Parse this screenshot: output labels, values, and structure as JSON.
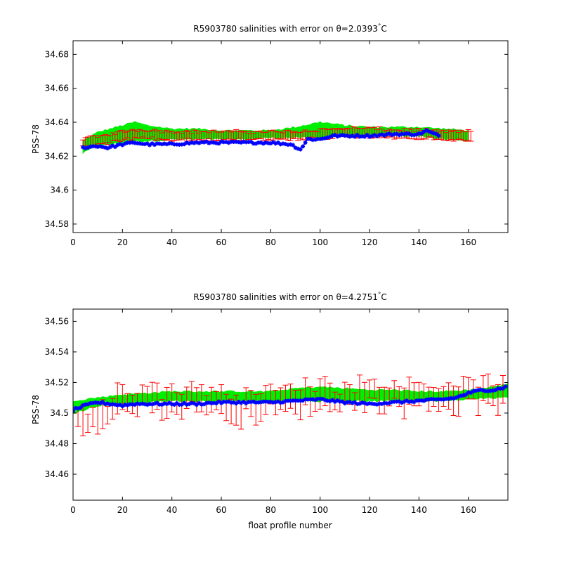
{
  "chart_data": [
    {
      "type": "scatter",
      "title_prefix": "R5903780 salinities with error on θ=2.0393",
      "title_suffix": "C",
      "title_degree": "°",
      "xlabel": "",
      "ylabel": "PSS-78",
      "xlim": [
        0,
        176
      ],
      "ylim": [
        34.575,
        34.688
      ],
      "xticks": [
        "0",
        "20",
        "40",
        "60",
        "80",
        "100",
        "120",
        "140",
        "160"
      ],
      "yticks": [
        "34.58",
        "34.6",
        "34.62",
        "34.64",
        "34.66",
        "34.68"
      ],
      "grid": false,
      "colors": {
        "band": "#00ee00",
        "error": "#ff0000",
        "float": "#0000ff"
      },
      "x_range": [
        4,
        161
      ],
      "band": {
        "x": [
          4,
          10,
          20,
          25,
          30,
          40,
          50,
          60,
          70,
          80,
          90,
          100,
          110,
          120,
          130,
          140,
          150,
          160
        ],
        "lo": [
          34.622,
          34.626,
          34.628,
          34.629,
          34.629,
          34.63,
          34.63,
          34.63,
          34.63,
          34.631,
          34.631,
          34.631,
          34.632,
          34.632,
          34.632,
          34.632,
          34.63,
          34.629
        ],
        "hi": [
          34.629,
          34.634,
          34.638,
          34.64,
          34.638,
          34.636,
          34.636,
          34.635,
          34.635,
          34.635,
          34.637,
          34.64,
          34.638,
          34.637,
          34.637,
          34.637,
          34.636,
          34.635
        ]
      },
      "series": [
        {
          "kind": "errorbar",
          "color": "#ff0000",
          "x": [
            4,
            10,
            20,
            25,
            30,
            40,
            50,
            60,
            70,
            80,
            90,
            100,
            110,
            120,
            130,
            140,
            150,
            161
          ],
          "y": [
            34.628,
            34.629,
            34.632,
            34.633,
            34.633,
            34.632,
            34.632,
            34.632,
            34.632,
            34.632,
            34.632,
            34.633,
            34.634,
            34.634,
            34.633,
            34.633,
            34.632,
            34.632
          ],
          "err": 0.0025
        },
        {
          "kind": "markers",
          "color": "#0000ff",
          "x": [
            4,
            10,
            14,
            20,
            25,
            30,
            40,
            50,
            60,
            70,
            80,
            88,
            92,
            95,
            100,
            105,
            110,
            120,
            130,
            140,
            143,
            148
          ],
          "y": [
            34.625,
            34.626,
            34.625,
            34.627,
            34.628,
            34.627,
            34.627,
            34.628,
            34.628,
            34.628,
            34.628,
            34.627,
            34.624,
            34.63,
            34.63,
            34.632,
            34.632,
            34.632,
            34.633,
            34.633,
            34.635,
            34.632
          ]
        }
      ]
    },
    {
      "type": "scatter",
      "title_prefix": "R5903780 salinities with error on θ=4.2751",
      "title_suffix": "C",
      "title_degree": "°",
      "xlabel": "float profile number",
      "ylabel": "PSS-78",
      "xlim": [
        0,
        176
      ],
      "ylim": [
        34.443,
        34.568
      ],
      "xticks": [
        "0",
        "20",
        "40",
        "60",
        "80",
        "100",
        "120",
        "140",
        "160"
      ],
      "yticks": [
        "34.46",
        "34.48",
        "34.5",
        "34.52",
        "34.54",
        "34.56"
      ],
      "grid": false,
      "colors": {
        "band": "#00ee00",
        "error": "#ff0000",
        "float": "#0000ff"
      },
      "x_range": [
        0,
        176
      ],
      "band": {
        "x": [
          0,
          10,
          20,
          30,
          40,
          50,
          60,
          70,
          80,
          90,
          100,
          110,
          120,
          130,
          140,
          150,
          160,
          170,
          176
        ],
        "lo": [
          34.5,
          34.505,
          34.506,
          34.507,
          34.508,
          34.508,
          34.508,
          34.508,
          34.508,
          34.508,
          34.508,
          34.508,
          34.508,
          34.508,
          34.508,
          34.508,
          34.509,
          34.51,
          34.51
        ],
        "hi": [
          34.508,
          34.51,
          34.512,
          34.513,
          34.514,
          34.514,
          34.514,
          34.514,
          34.514,
          34.516,
          34.517,
          34.516,
          34.515,
          34.515,
          34.514,
          34.514,
          34.515,
          34.517,
          34.519
        ]
      },
      "series": [
        {
          "kind": "errorbar",
          "color": "#ff0000",
          "x": [
            2,
            6,
            10,
            14,
            18,
            22,
            26,
            30,
            36,
            40,
            46,
            50,
            56,
            60,
            64,
            68,
            72,
            76,
            80,
            86,
            90,
            96,
            100,
            106,
            110,
            116,
            120,
            126,
            130,
            136,
            140,
            146,
            150,
            156,
            160,
            166,
            170,
            175
          ],
          "y": [
            34.499,
            34.496,
            34.498,
            34.5,
            34.505,
            34.511,
            34.509,
            34.51,
            34.507,
            34.508,
            34.509,
            34.511,
            34.508,
            34.505,
            34.506,
            34.503,
            34.507,
            34.506,
            34.508,
            34.507,
            34.51,
            34.51,
            34.512,
            34.511,
            34.511,
            34.513,
            34.513,
            34.513,
            34.511,
            34.511,
            34.513,
            34.512,
            34.511,
            34.512,
            34.513,
            34.512,
            34.512,
            34.512
          ],
          "err": 0.008
        },
        {
          "kind": "markers",
          "color": "#0000ff",
          "x": [
            0,
            5,
            10,
            15,
            20,
            25,
            30,
            40,
            50,
            60,
            70,
            80,
            90,
            100,
            110,
            120,
            130,
            140,
            150,
            155,
            160,
            165,
            170,
            175
          ],
          "y": [
            34.502,
            34.505,
            34.507,
            34.506,
            34.505,
            34.506,
            34.506,
            34.506,
            34.506,
            34.507,
            34.507,
            34.507,
            34.508,
            34.509,
            34.507,
            34.506,
            34.507,
            34.508,
            34.509,
            34.51,
            34.513,
            34.515,
            34.515,
            34.517
          ]
        }
      ]
    }
  ]
}
